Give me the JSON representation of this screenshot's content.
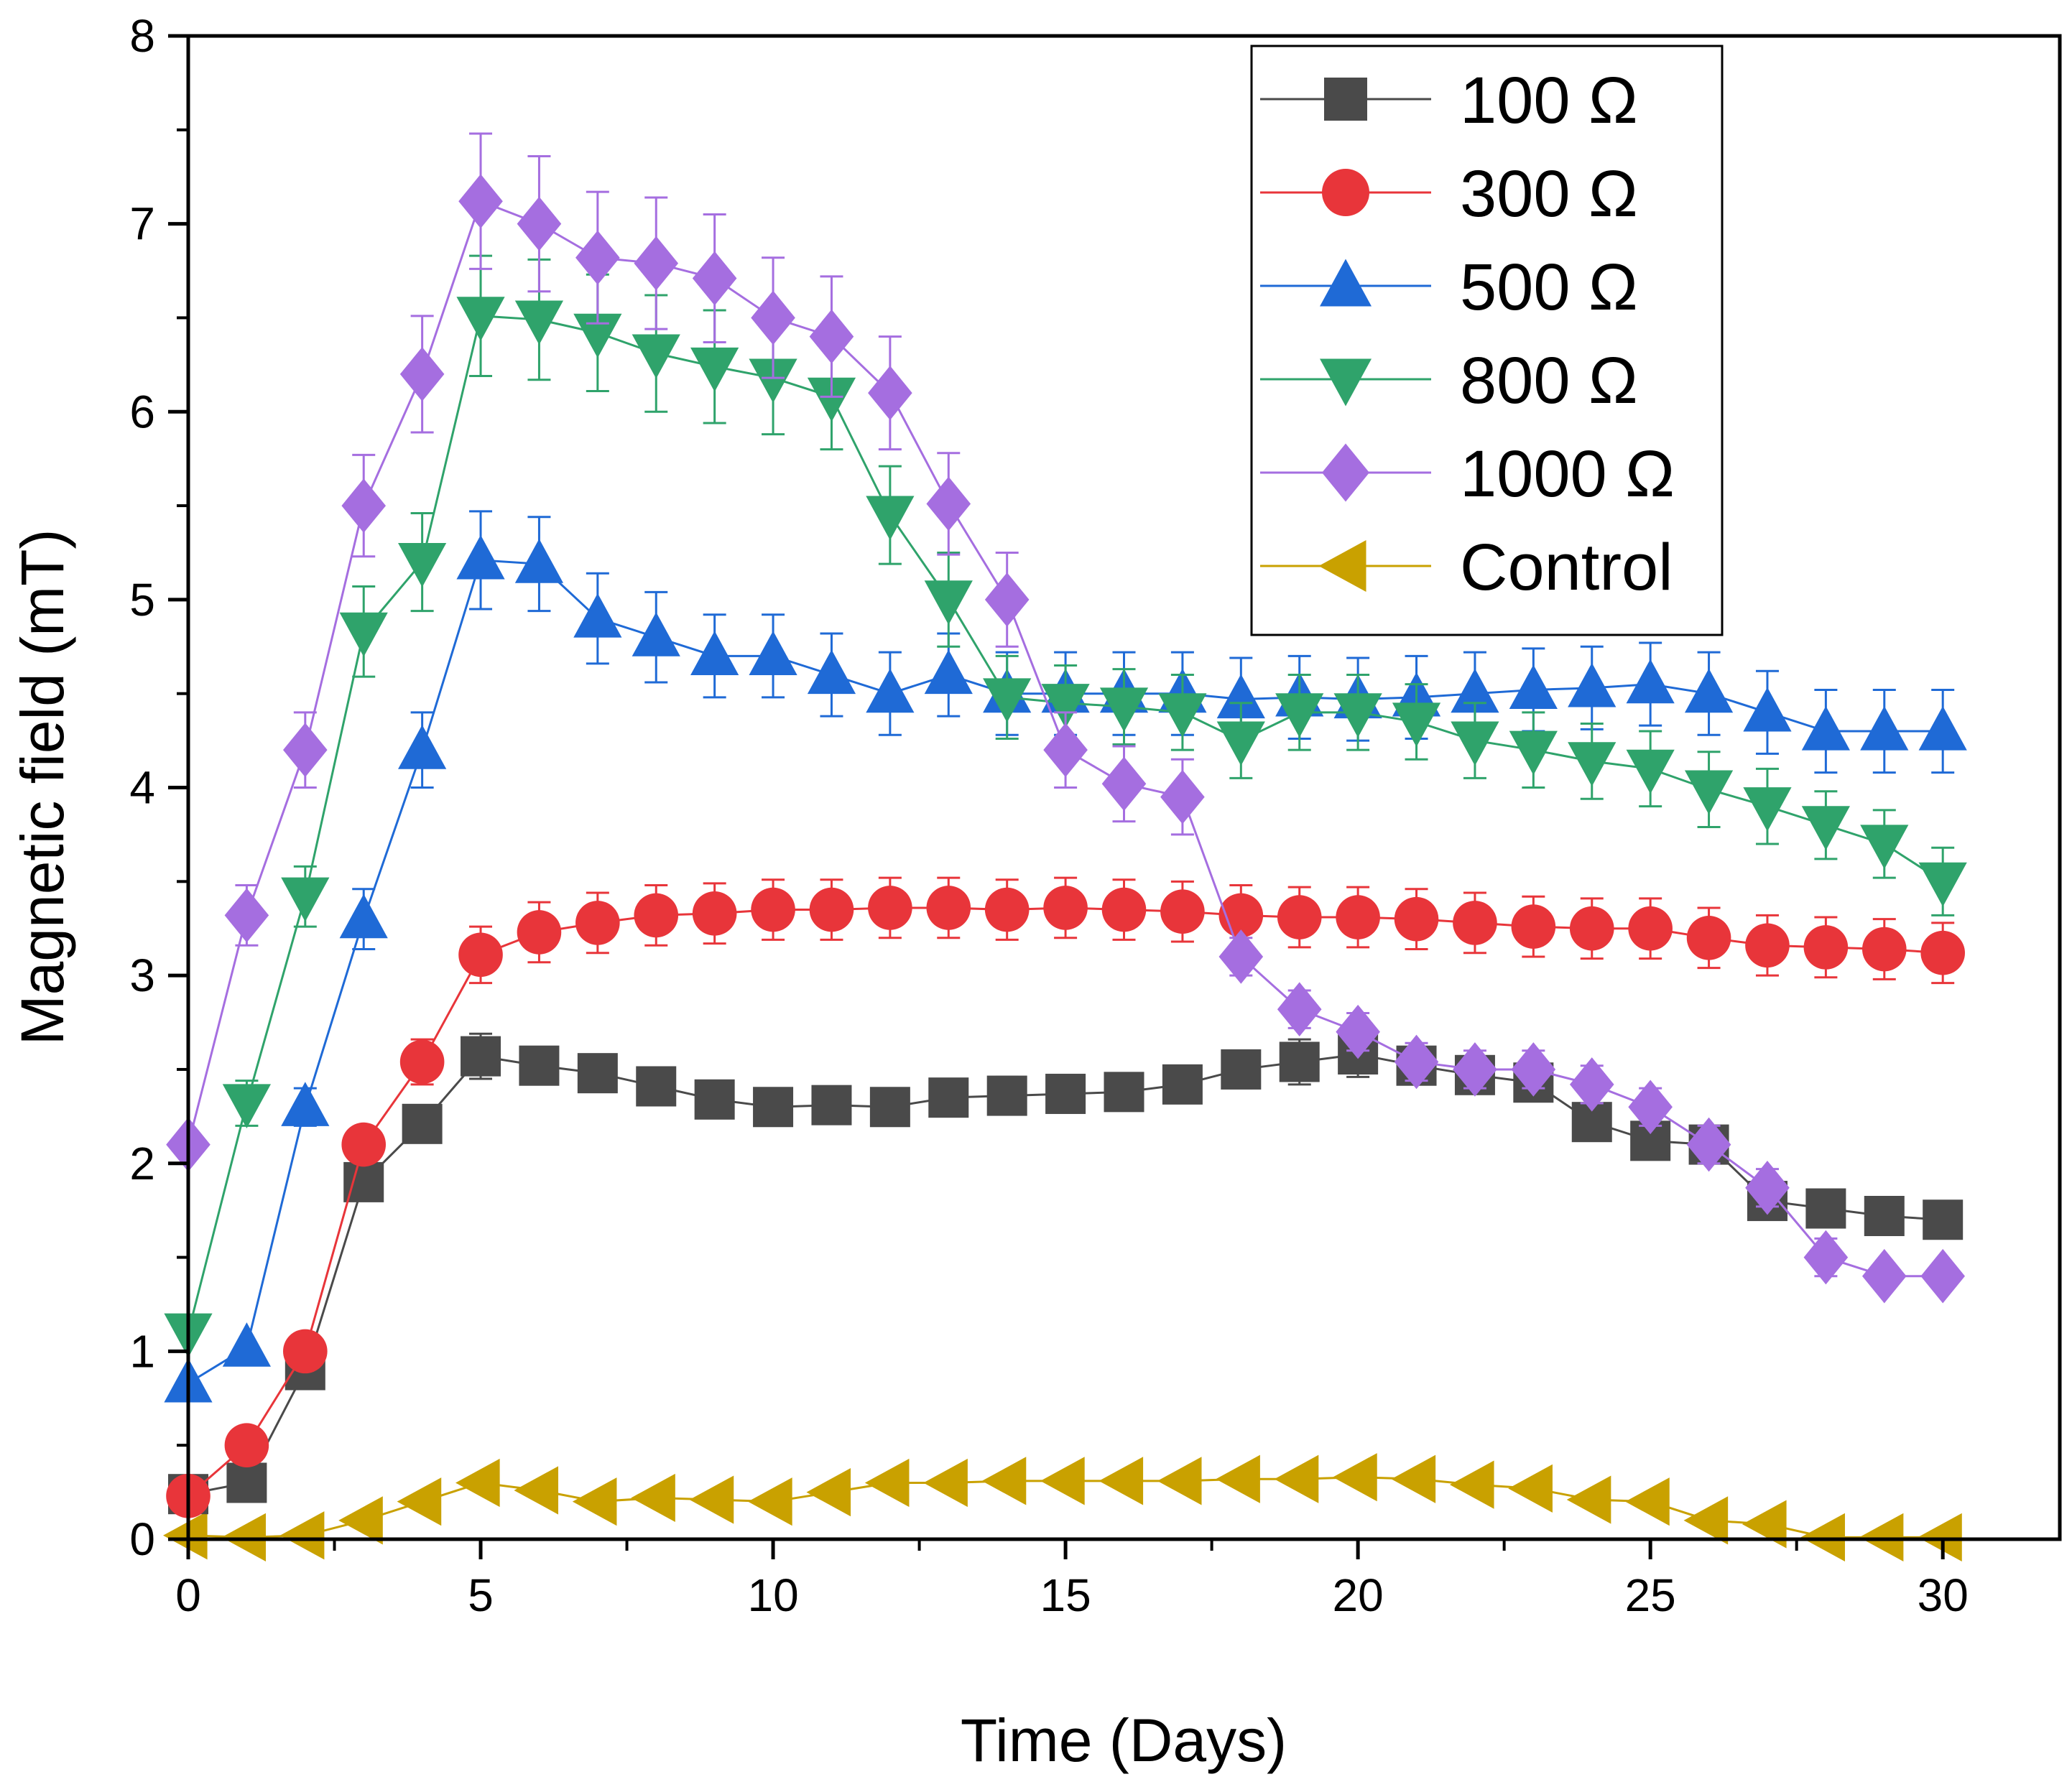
{
  "chart_data": {
    "type": "line",
    "title": "",
    "xlabel": "Time (Days)",
    "ylabel": "Magnetic field (mT)",
    "xlim": [
      0,
      32
    ],
    "ylim": [
      0,
      8
    ],
    "xticks": [
      0,
      5,
      10,
      15,
      20,
      25,
      30
    ],
    "xtick_labels": [
      "0",
      "5",
      "10",
      "15",
      "20",
      "25",
      "30"
    ],
    "yticks": [
      0,
      1,
      2,
      3,
      4,
      5,
      6,
      7,
      8
    ],
    "ytick_labels": [
      "0",
      "1",
      "2",
      "3",
      "4",
      "5",
      "6",
      "7",
      "8"
    ],
    "grid": false,
    "legend_position": "top-right",
    "x": [
      0,
      1,
      2,
      3,
      4,
      5,
      6,
      7,
      8,
      9,
      10,
      11,
      12,
      13,
      14,
      15,
      16,
      17,
      18,
      19,
      20,
      21,
      22,
      23,
      24,
      25,
      26,
      27,
      28,
      29,
      30
    ],
    "series": [
      {
        "name": "Control",
        "color": "#c9a100",
        "marker": "triangle-left",
        "values": [
          0.02,
          0.01,
          0.02,
          0.1,
          0.2,
          0.3,
          0.26,
          0.2,
          0.22,
          0.21,
          0.2,
          0.25,
          0.3,
          0.3,
          0.31,
          0.31,
          0.31,
          0.31,
          0.32,
          0.32,
          0.33,
          0.32,
          0.29,
          0.27,
          0.21,
          0.2,
          0.1,
          0.08,
          0.01,
          0.01,
          0.01
        ],
        "errors": [
          0,
          0,
          0,
          0,
          0,
          0,
          0,
          0,
          0,
          0,
          0,
          0,
          0,
          0,
          0,
          0,
          0,
          0,
          0,
          0,
          0,
          0,
          0,
          0,
          0,
          0,
          0,
          0,
          0,
          0,
          0
        ]
      },
      {
        "name": "100 Ω",
        "color": "#4a4a4a",
        "marker": "square",
        "values": [
          0.24,
          0.3,
          0.9,
          1.9,
          2.21,
          2.57,
          2.52,
          2.48,
          2.41,
          2.34,
          2.3,
          2.31,
          2.3,
          2.35,
          2.36,
          2.37,
          2.38,
          2.42,
          2.5,
          2.54,
          2.58,
          2.52,
          2.47,
          2.43,
          2.22,
          2.12,
          2.1,
          1.8,
          1.76,
          1.72,
          1.7
        ],
        "errors": [
          0,
          0,
          0,
          0,
          0.1,
          0.12,
          0.1,
          0.1,
          0.1,
          0.1,
          0.1,
          0.1,
          0.1,
          0.1,
          0.1,
          0.1,
          0.1,
          0.1,
          0.1,
          0.12,
          0.12,
          0.1,
          0.1,
          0.1,
          0.1,
          0.1,
          0.1,
          0,
          0,
          0,
          0
        ]
      },
      {
        "name": "300 Ω",
        "color": "#e8353a",
        "marker": "circle",
        "values": [
          0.23,
          0.5,
          1.0,
          2.1,
          2.54,
          3.11,
          3.23,
          3.28,
          3.32,
          3.33,
          3.35,
          3.35,
          3.36,
          3.36,
          3.35,
          3.36,
          3.35,
          3.34,
          3.32,
          3.31,
          3.31,
          3.3,
          3.28,
          3.26,
          3.25,
          3.25,
          3.2,
          3.16,
          3.15,
          3.14,
          3.12
        ],
        "errors": [
          0,
          0,
          0,
          0,
          0.12,
          0.15,
          0.16,
          0.16,
          0.16,
          0.16,
          0.16,
          0.16,
          0.16,
          0.16,
          0.16,
          0.16,
          0.16,
          0.16,
          0.16,
          0.16,
          0.16,
          0.16,
          0.16,
          0.16,
          0.16,
          0.16,
          0.16,
          0.16,
          0.16,
          0.16,
          0.16
        ]
      },
      {
        "name": "500 Ω",
        "color": "#1f6ad6",
        "marker": "triangle-up",
        "values": [
          0.83,
          1.02,
          2.3,
          3.3,
          4.2,
          5.21,
          5.19,
          4.9,
          4.8,
          4.7,
          4.7,
          4.6,
          4.5,
          4.6,
          4.5,
          4.5,
          4.5,
          4.5,
          4.47,
          4.48,
          4.47,
          4.48,
          4.5,
          4.52,
          4.53,
          4.55,
          4.5,
          4.4,
          4.3,
          4.3,
          4.3
        ],
        "errors": [
          0,
          0,
          0.1,
          0.16,
          0.2,
          0.26,
          0.25,
          0.24,
          0.24,
          0.22,
          0.22,
          0.22,
          0.22,
          0.22,
          0.22,
          0.22,
          0.22,
          0.22,
          0.22,
          0.22,
          0.22,
          0.22,
          0.22,
          0.22,
          0.22,
          0.22,
          0.22,
          0.22,
          0.22,
          0.22,
          0.22
        ]
      },
      {
        "name": "800 Ω",
        "color": "#2fa36b",
        "marker": "triangle-down",
        "values": [
          1.1,
          2.32,
          3.42,
          4.83,
          5.2,
          6.51,
          6.49,
          6.42,
          6.31,
          6.24,
          6.18,
          6.08,
          5.45,
          5.0,
          4.48,
          4.45,
          4.43,
          4.4,
          4.25,
          4.4,
          4.4,
          4.35,
          4.25,
          4.2,
          4.14,
          4.1,
          3.99,
          3.9,
          3.8,
          3.7,
          3.5
        ],
        "errors": [
          0,
          0.12,
          0.16,
          0.24,
          0.26,
          0.32,
          0.32,
          0.31,
          0.31,
          0.3,
          0.3,
          0.28,
          0.26,
          0.25,
          0.22,
          0.2,
          0.2,
          0.2,
          0.2,
          0.2,
          0.2,
          0.2,
          0.2,
          0.2,
          0.2,
          0.2,
          0.2,
          0.2,
          0.18,
          0.18,
          0.18
        ]
      },
      {
        "name": "1000 Ω",
        "color": "#a56ee0",
        "marker": "diamond",
        "values": [
          2.1,
          3.32,
          4.2,
          5.5,
          6.2,
          7.12,
          7.0,
          6.82,
          6.79,
          6.71,
          6.5,
          6.4,
          6.1,
          5.51,
          5.0,
          4.2,
          4.02,
          3.95,
          3.1,
          2.82,
          2.7,
          2.54,
          2.5,
          2.5,
          2.42,
          2.3,
          2.1,
          1.87,
          1.5,
          1.4,
          1.4
        ],
        "errors": [
          0,
          0.16,
          0.2,
          0.27,
          0.31,
          0.36,
          0.36,
          0.35,
          0.35,
          0.34,
          0.32,
          0.32,
          0.3,
          0.27,
          0.25,
          0.2,
          0.2,
          0.2,
          0.1,
          0.1,
          0.1,
          0.1,
          0.1,
          0.1,
          0.1,
          0.1,
          0.1,
          0.1,
          0.1,
          0,
          0
        ]
      }
    ],
    "legend_order": [
      "100 Ω",
      "300 Ω",
      "500 Ω",
      "800 Ω",
      "1000 Ω",
      "Control"
    ]
  }
}
